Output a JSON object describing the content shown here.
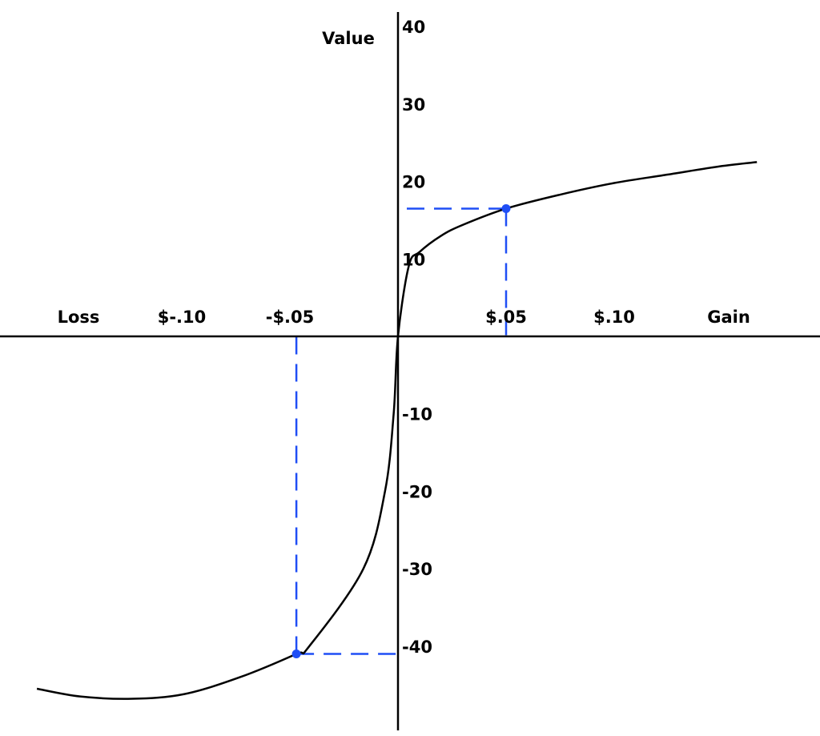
{
  "chart_data": {
    "type": "line",
    "title": "",
    "xlabel_left": "Loss",
    "xlabel_right": "Gain",
    "ylabel": "Value",
    "xlim": [
      -0.185,
      0.2
    ],
    "ylim": [
      -51,
      42
    ],
    "x_ticks": [
      {
        "value": -0.1,
        "label": "$-.10"
      },
      {
        "value": -0.05,
        "label": "-$.05"
      },
      {
        "value": 0.05,
        "label": "$.05"
      },
      {
        "value": 0.1,
        "label": "$.10"
      }
    ],
    "y_ticks": [
      {
        "value": 40,
        "label": "40"
      },
      {
        "value": 30,
        "label": "30"
      },
      {
        "value": 20,
        "label": "20"
      },
      {
        "value": 10,
        "label": "10"
      },
      {
        "value": -10,
        "label": "-10"
      },
      {
        "value": -20,
        "label": "-20"
      },
      {
        "value": -30,
        "label": "-30"
      },
      {
        "value": -40,
        "label": "-40"
      }
    ],
    "grid": false,
    "series": [
      {
        "color": "#000000",
        "points": [
          [
            -0.167,
            -45.5
          ],
          [
            -0.147,
            -46.5
          ],
          [
            -0.123,
            -46.8
          ],
          [
            -0.099,
            -46.2
          ],
          [
            -0.073,
            -44
          ],
          [
            -0.047,
            -41
          ],
          [
            -0.041,
            -40
          ],
          [
            -0.016,
            -30
          ],
          [
            -0.006,
            -20
          ],
          [
            -0.002,
            -10
          ],
          [
            0,
            0
          ],
          [
            0.005,
            9.1
          ],
          [
            0.01,
            10.9
          ],
          [
            0.02,
            13.0
          ],
          [
            0.03,
            14.4
          ],
          [
            0.05,
            16.5
          ],
          [
            0.075,
            18.3
          ],
          [
            0.1,
            19.8
          ],
          [
            0.125,
            20.9
          ],
          [
            0.15,
            22.0
          ],
          [
            0.166,
            22.5
          ]
        ]
      }
    ],
    "highlighted_points": [
      {
        "x": 0.05,
        "y": 16.5,
        "color": "#1f4ef5"
      },
      {
        "x": -0.047,
        "y": -41,
        "color": "#1f4ef5"
      }
    ]
  }
}
